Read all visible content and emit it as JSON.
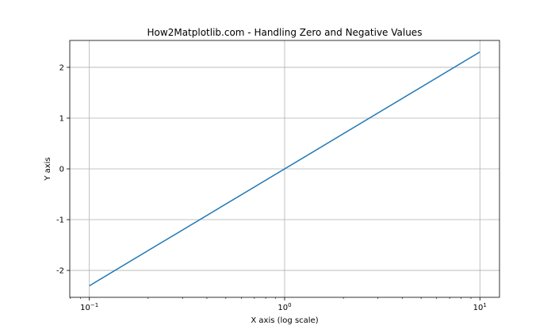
{
  "chart_data": {
    "type": "line",
    "title": "How2Matplotlib.com - Handling Zero and Negative Values",
    "xlabel": "X axis (log scale)",
    "ylabel": "Y axis",
    "xscale": "log",
    "xlim": [
      0.0794,
      12.6
    ],
    "ylim": [
      -2.53,
      2.53
    ],
    "grid": true,
    "line_color": "#1f77b4",
    "x_ticks": [
      {
        "value": 0.1,
        "base": "10",
        "exp": "−1"
      },
      {
        "value": 1,
        "base": "10",
        "exp": "0"
      },
      {
        "value": 10,
        "base": "10",
        "exp": "1"
      }
    ],
    "y_ticks": [
      {
        "value": -2,
        "label": "-2"
      },
      {
        "value": -1,
        "label": "-1"
      },
      {
        "value": 0,
        "label": "0"
      },
      {
        "value": 1,
        "label": "1"
      },
      {
        "value": 2,
        "label": "2"
      }
    ],
    "series": [
      {
        "x": [
          0.1,
          0.2,
          0.3,
          0.5,
          0.7,
          1,
          2,
          3,
          5,
          7,
          10
        ],
        "y": [
          -2.303,
          -1.609,
          -1.204,
          -0.693,
          -0.357,
          0,
          0.693,
          1.099,
          1.609,
          1.946,
          2.303
        ]
      }
    ]
  }
}
